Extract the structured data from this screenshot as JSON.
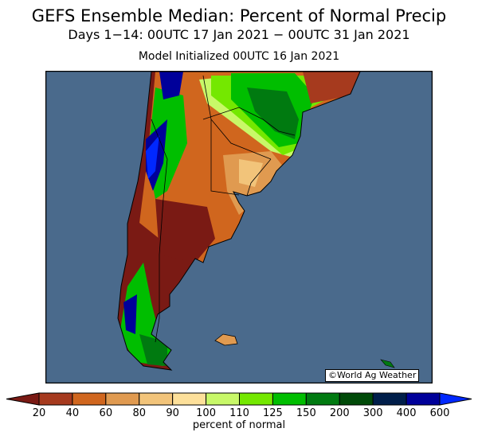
{
  "title": "GEFS Ensemble Median: Percent of Normal Precip",
  "subtitle": "Days 1−14: 00UTC 17 Jan 2021 − 00UTC 31 Jan 2021",
  "initialized": "Model Initialized 00UTC 16 Jan 2021",
  "credit": "©World Ag Weather",
  "colorbar": {
    "label": "percent of normal",
    "ticks": [
      "20",
      "40",
      "60",
      "80",
      "90",
      "100",
      "110",
      "125",
      "150",
      "200",
      "300",
      "400",
      "600"
    ],
    "colors": [
      "#7a1a14",
      "#a63a1e",
      "#d0661e",
      "#e09a50",
      "#f2c47a",
      "#fde09a",
      "#c8f868",
      "#74e800",
      "#00be00",
      "#007a10",
      "#004a08",
      "#001e4a",
      "#00009a",
      "#0028ff"
    ]
  },
  "ocean_color": "#4a6a8c"
}
